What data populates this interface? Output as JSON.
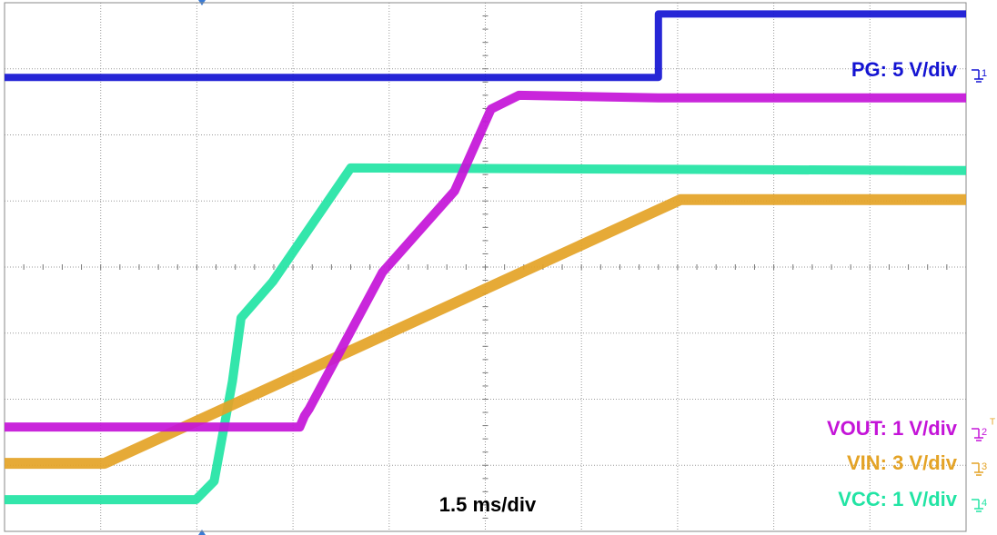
{
  "chart_data": {
    "type": "line",
    "annotation": "1.5 ms/div",
    "xlim": [
      0,
      10
    ],
    "ylim": [
      0,
      8
    ],
    "xticks": [
      0,
      1,
      2,
      3,
      4,
      5,
      6,
      7,
      8,
      9,
      10
    ],
    "yticks": [
      0,
      1,
      2,
      3,
      4,
      5,
      6,
      7,
      8
    ],
    "grid": true,
    "channel_markers": [
      "1",
      "2",
      "3",
      "4"
    ],
    "trigger_marker": "T",
    "series": [
      {
        "name": "PG: 5 V/div",
        "color": "#1414d2",
        "x": [
          0,
          6.8,
          6.8,
          10
        ],
        "values": [
          6.87,
          6.87,
          7.83,
          7.83
        ]
      },
      {
        "name": "VOUT: 1 V/div",
        "color": "#c414d8",
        "x": [
          0,
          3.07,
          3.12,
          3.17,
          3.93,
          4.68,
          5.06,
          5.35,
          6.8,
          10
        ],
        "values": [
          1.58,
          1.58,
          1.75,
          1.86,
          3.92,
          5.15,
          6.39,
          6.6,
          6.56,
          6.56
        ]
      },
      {
        "name": "VIN: 3 V/div",
        "color": "#e4a326",
        "x": [
          0,
          1.04,
          7.03,
          10
        ],
        "values": [
          1.03,
          1.03,
          5.02,
          5.02
        ]
      },
      {
        "name": "VCC: 1 V/div",
        "color": "#22e4a4",
        "x": [
          0,
          1.99,
          2.18,
          2.37,
          2.46,
          2.79,
          3.6,
          10
        ],
        "values": [
          0.48,
          0.48,
          0.76,
          2.27,
          3.23,
          3.78,
          5.5,
          5.46
        ]
      }
    ]
  }
}
